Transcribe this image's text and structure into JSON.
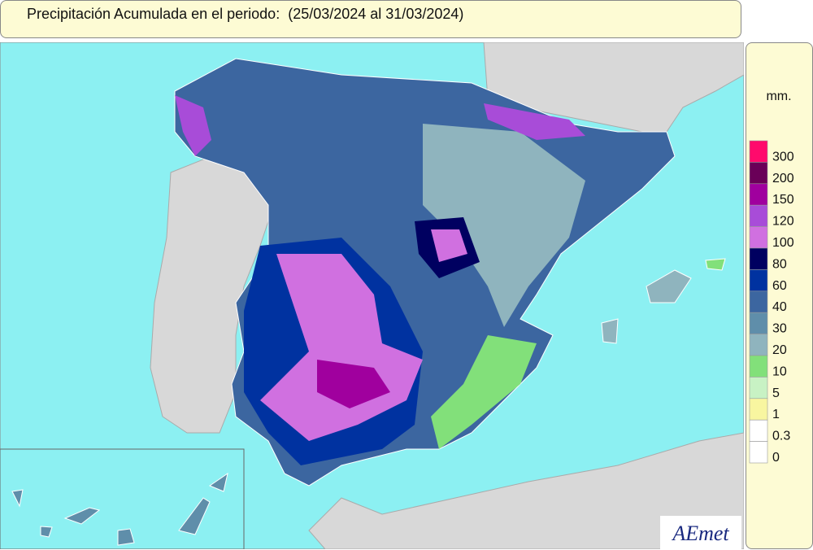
{
  "title": "Precipitación Acumulada en el periodo:  (25/03/2024 al 31/03/2024)",
  "legend": {
    "unit": "mm.",
    "labels": [
      300,
      200,
      150,
      120,
      100,
      80,
      60,
      40,
      30,
      20,
      10,
      5,
      1,
      0.3,
      0
    ],
    "colors": [
      "#ff0a6c",
      "#6a0058",
      "#a0009e",
      "#a84cd8",
      "#d070e0",
      "#000060",
      "#0032a0",
      "#3c66a0",
      "#5f8eaa",
      "#8fb4be",
      "#82e07a",
      "#c8f2c4",
      "#f8f6a0",
      "#ffffff",
      "#ffffff"
    ]
  },
  "logo": "AEmet"
}
